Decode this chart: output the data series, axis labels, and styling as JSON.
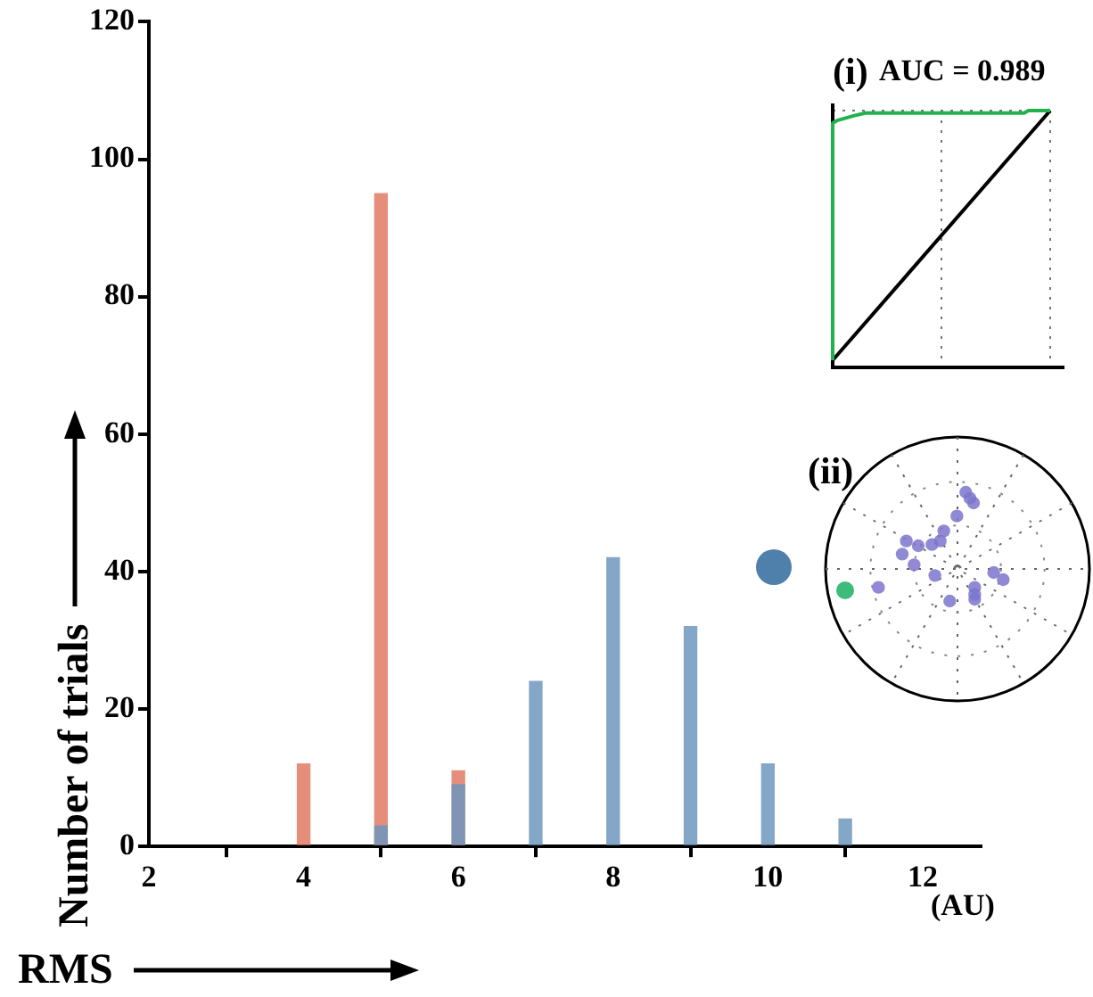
{
  "chart_data": [
    {
      "type": "bar",
      "x": [
        4,
        5,
        6,
        7,
        8,
        9,
        10,
        11
      ],
      "xlabel": "RMS",
      "ylabel": "Number of trials",
      "xlim": [
        2,
        12.75
      ],
      "xticks": [
        2,
        4,
        6,
        8,
        10,
        12
      ],
      "ylim": [
        0,
        120
      ],
      "yticks": [
        0,
        20,
        40,
        60,
        80,
        100,
        120
      ],
      "grid": false,
      "annotations": [
        "(AU)"
      ],
      "series": [
        {
          "color": "#6f97bd",
          "values": [
            null,
            3,
            9,
            24,
            42,
            32,
            12,
            4
          ]
        },
        {
          "color": "#e07a64",
          "values": [
            12,
            95,
            11,
            null,
            null,
            null,
            null,
            null
          ]
        }
      ]
    },
    {
      "type": "other",
      "title": "(i)",
      "annotations": [
        "AUC = 0.989"
      ]
    },
    {
      "type": "other",
      "title": "(ii)"
    }
  ]
}
